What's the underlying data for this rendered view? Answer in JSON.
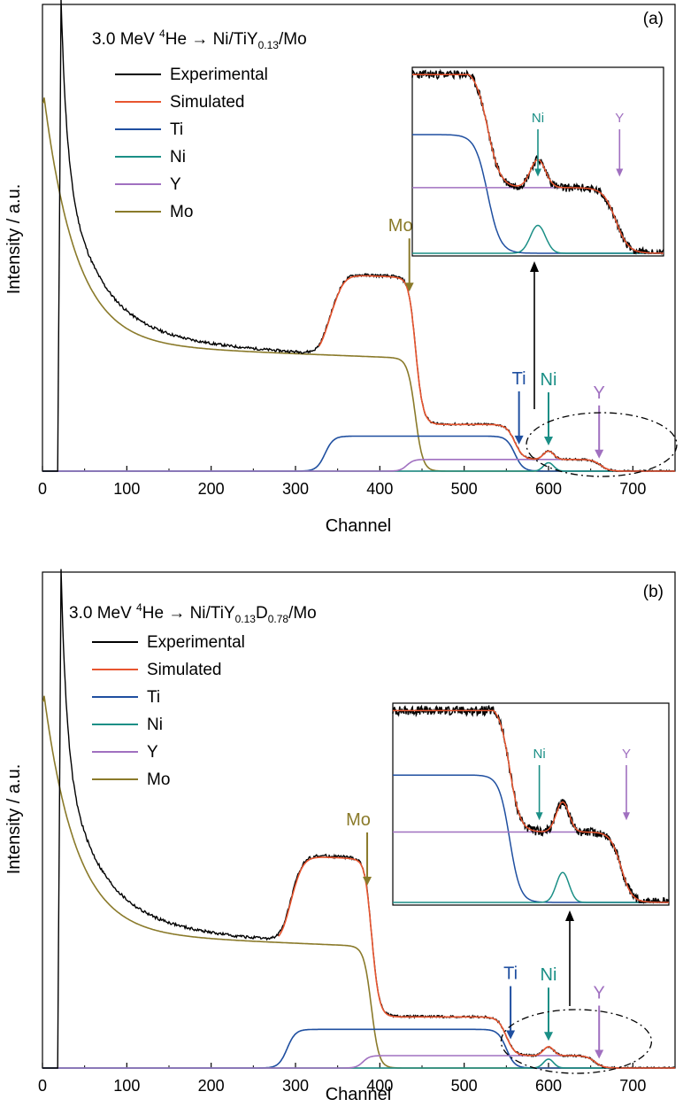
{
  "colors": {
    "experimental": "#000000",
    "simulated": "#e8552f",
    "Ti": "#1f4fa0",
    "Ni": "#1b8f86",
    "Y": "#a070c0",
    "Mo": "#8a7a2a"
  },
  "chart_data": [
    {
      "type": "line",
      "panel_label": "(a)",
      "title_parts": {
        "prefix": "3.0 MeV ",
        "sup": "4",
        "mid": "He → Ni/TiY",
        "sub1": "0.13",
        "mid2": "",
        "sub2": "",
        "suffix": "/Mo"
      },
      "xlabel": "Channel",
      "ylabel": "Intensity / a.u.",
      "xlim": [
        0,
        750
      ],
      "x_ticks": [
        0,
        100,
        200,
        300,
        400,
        500,
        600,
        700
      ],
      "ylim": [
        0,
        1
      ],
      "legend": [
        "Experimental",
        "Simulated",
        "Ti",
        "Ni",
        "Y",
        "Mo"
      ],
      "legend_placement": "top-left",
      "annotations": [
        {
          "text": "Mo",
          "x": 435,
          "color_key": "Mo"
        },
        {
          "text": "Ti",
          "x": 565,
          "color_key": "Ti"
        },
        {
          "text": "Ni",
          "x": 600,
          "color_key": "Ni"
        },
        {
          "text": "Y",
          "x": 660,
          "color_key": "Y"
        }
      ],
      "inset": {
        "x_range": [
          500,
          700
        ],
        "annotations": [
          {
            "text": "Ni",
            "x": 600,
            "color_key": "Ni"
          },
          {
            "text": "Y",
            "x": 665,
            "color_key": "Y"
          }
        ]
      },
      "model": {
        "peak_x": 22,
        "peak_y": 0.98,
        "rise_x": 18,
        "mo_base": 0.262,
        "mo_low": 0.235,
        "mo_start_y": 0.79,
        "mo_edge": 442,
        "ti_start": 335,
        "ti_edge": 560,
        "ti_level": 0.075,
        "y_start": 432,
        "y_edge": 662,
        "y_level": 0.025,
        "ni_center": 600,
        "ni_level": 0.018,
        "plateau_level": 0.35,
        "plateau_start": 348
      }
    },
    {
      "type": "line",
      "panel_label": "(b)",
      "title_parts": {
        "prefix": "3.0 MeV ",
        "sup": "4",
        "mid": "He → Ni/TiY",
        "sub1": "0.13",
        "mid2": "D",
        "sub2": "0.78",
        "suffix": "/Mo"
      },
      "xlabel": "Channel",
      "ylabel": "Intensity / a.u.",
      "xlim": [
        0,
        750
      ],
      "x_ticks": [
        0,
        100,
        200,
        300,
        400,
        500,
        600,
        700
      ],
      "ylim": [
        0,
        1
      ],
      "legend": [
        "Experimental",
        "Simulated",
        "Ti",
        "Ni",
        "Y",
        "Mo"
      ],
      "legend_placement": "top-left",
      "annotations": [
        {
          "text": "Mo",
          "x": 385,
          "color_key": "Mo"
        },
        {
          "text": "Ti",
          "x": 555,
          "color_key": "Ti"
        },
        {
          "text": "Ni",
          "x": 600,
          "color_key": "Ni"
        },
        {
          "text": "Y",
          "x": 660,
          "color_key": "Y"
        }
      ],
      "inset": {
        "x_range": [
          440,
          700
        ],
        "annotations": [
          {
            "text": "Ni",
            "x": 578,
            "color_key": "Ni"
          },
          {
            "text": "Y",
            "x": 660,
            "color_key": "Y"
          }
        ]
      },
      "model": {
        "peak_x": 22,
        "peak_y": 0.98,
        "rise_x": 18,
        "mo_base": 0.262,
        "mo_low": 0.235,
        "mo_start_y": 0.74,
        "mo_edge": 390,
        "ti_start": 290,
        "ti_edge": 550,
        "ti_level": 0.078,
        "y_start": 380,
        "y_edge": 655,
        "y_level": 0.025,
        "ni_center": 600,
        "ni_level": 0.018,
        "plateau_level": 0.35,
        "plateau_start": 300
      }
    }
  ]
}
